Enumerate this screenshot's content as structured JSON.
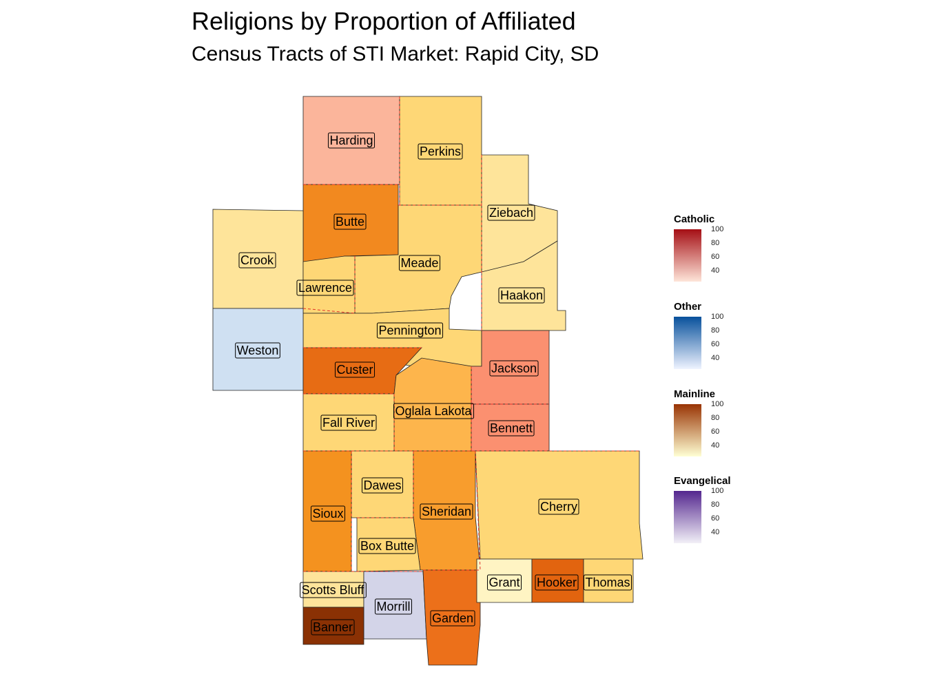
{
  "title": "Religions by Proportion of Affiliated",
  "subtitle": "Census Tracts of STI Market: Rapid City, SD",
  "counties": [
    {
      "name": "Harding",
      "category": "Catholic",
      "fill": "#fbb59b"
    },
    {
      "name": "Perkins",
      "category": "Mainline",
      "fill": "#fed776"
    },
    {
      "name": "Butte",
      "category": "Mainline",
      "fill": "#f2891f"
    },
    {
      "name": "Ziebach",
      "category": "Mainline",
      "fill": "#fee49a"
    },
    {
      "name": "Crook",
      "category": "Mainline",
      "fill": "#fee49a"
    },
    {
      "name": "Meade",
      "category": "Mainline",
      "fill": "#fed776"
    },
    {
      "name": "Lawrence",
      "category": "Mainline",
      "fill": "#fed776"
    },
    {
      "name": "Haakon",
      "category": "Mainline",
      "fill": "#fee49a"
    },
    {
      "name": "Pennington",
      "category": "Mainline",
      "fill": "#fed776"
    },
    {
      "name": "Weston",
      "category": "Other",
      "fill": "#cfe0f2"
    },
    {
      "name": "Custer",
      "category": "Mainline",
      "fill": "#e76c14"
    },
    {
      "name": "Jackson",
      "category": "Catholic",
      "fill": "#fb9070"
    },
    {
      "name": "Oglala Lakota",
      "category": "Mainline",
      "fill": "#fdb54c"
    },
    {
      "name": "Bennett",
      "category": "Catholic",
      "fill": "#fb9070"
    },
    {
      "name": "Fall River",
      "category": "Mainline",
      "fill": "#fed776"
    },
    {
      "name": "Dawes",
      "category": "Mainline",
      "fill": "#fed776"
    },
    {
      "name": "Sheridan",
      "category": "Mainline",
      "fill": "#f89d2d"
    },
    {
      "name": "Cherry",
      "category": "Mainline",
      "fill": "#fed776"
    },
    {
      "name": "Sioux",
      "category": "Mainline",
      "fill": "#f4921f"
    },
    {
      "name": "Box Butte",
      "category": "Mainline",
      "fill": "#fed776"
    },
    {
      "name": "Scotts Bluff",
      "category": "Mainline",
      "fill": "#fee49a"
    },
    {
      "name": "Morrill",
      "category": "Evangelical",
      "fill": "#d3d4e8"
    },
    {
      "name": "Garden",
      "category": "Mainline",
      "fill": "#ec701a"
    },
    {
      "name": "Grant",
      "category": "Mainline",
      "fill": "#fff4c3"
    },
    {
      "name": "Hooker",
      "category": "Mainline",
      "fill": "#e2640f"
    },
    {
      "name": "Thomas",
      "category": "Mainline",
      "fill": "#fed776"
    },
    {
      "name": "Banner",
      "category": "Mainline",
      "fill": "#8a3104"
    }
  ],
  "legends": [
    {
      "title": "Catholic",
      "ticks": [
        "100",
        "80",
        "60",
        "40"
      ],
      "color_low": "#fee5d9",
      "color_high": "#a50f15"
    },
    {
      "title": "Other",
      "ticks": [
        "100",
        "80",
        "60",
        "40"
      ],
      "color_low": "#eff3ff",
      "color_high": "#08519c"
    },
    {
      "title": "Mainline",
      "ticks": [
        "100",
        "80",
        "60",
        "40"
      ],
      "color_low": "#ffffd4",
      "color_high": "#993404"
    },
    {
      "title": "Evangelical",
      "ticks": [
        "100",
        "80",
        "60",
        "40"
      ],
      "color_low": "#f2f0f7",
      "color_high": "#54278f"
    }
  ]
}
